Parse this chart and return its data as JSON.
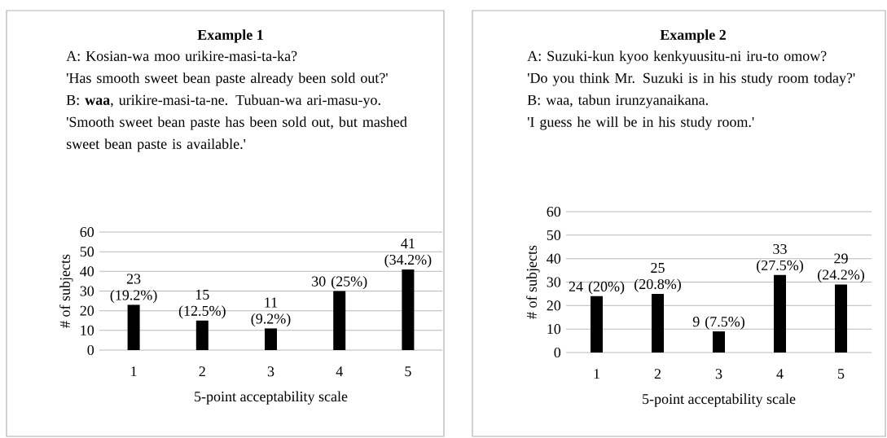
{
  "chart_data": [
    {
      "type": "bar",
      "title": "Example 1",
      "annotations": [
        "A: Kosian-wa moo urikire-masi-ta-ka?",
        "'Has smooth sweet bean paste already been sold out?'",
        "B: **waa**, urikire-masi-ta-ne. Tubuan-wa ari-masu-yo.",
        "'Smooth sweet bean paste has been sold out, but mashed sweet bean paste is available.'"
      ],
      "xlabel": "5-point acceptability scale",
      "ylabel": "# of subjects",
      "categories": [
        "1",
        "2",
        "3",
        "4",
        "5"
      ],
      "values": [
        23,
        15,
        11,
        30,
        41
      ],
      "color": "#000000",
      "value_labels": [
        "23 (19.2%)",
        "15 (12.5%)",
        "11 (9.2%)",
        "30 (25%)",
        "41 (34.2%)"
      ],
      "ylim": [
        0,
        60
      ],
      "yticks": [
        0,
        10,
        20,
        30,
        40,
        50,
        60
      ],
      "grid": "y"
    },
    {
      "type": "bar",
      "title": "Example 2",
      "annotations": [
        "A: Suzuki-kun kyoo kenkyuusitu-ni iru-to omow?",
        "'Do you think Mr. Suzuki is in his study room today?'",
        "B: waa, tabun irunzyanaikana.",
        "'I guess he will be in his study room.'"
      ],
      "xlabel": "5-point acceptability scale",
      "ylabel": "# of subjects",
      "categories": [
        "1",
        "2",
        "3",
        "4",
        "5"
      ],
      "values": [
        24,
        25,
        9,
        33,
        29
      ],
      "color": "#000000",
      "value_labels": [
        "24 (20%)",
        "25 (20.8%)",
        "9 (7.5%)",
        "33 (27.5%)",
        "29 (24.2%)"
      ],
      "ylim": [
        0,
        60
      ],
      "yticks": [
        0,
        10,
        20,
        30,
        40,
        50,
        60
      ],
      "grid": "y"
    }
  ]
}
